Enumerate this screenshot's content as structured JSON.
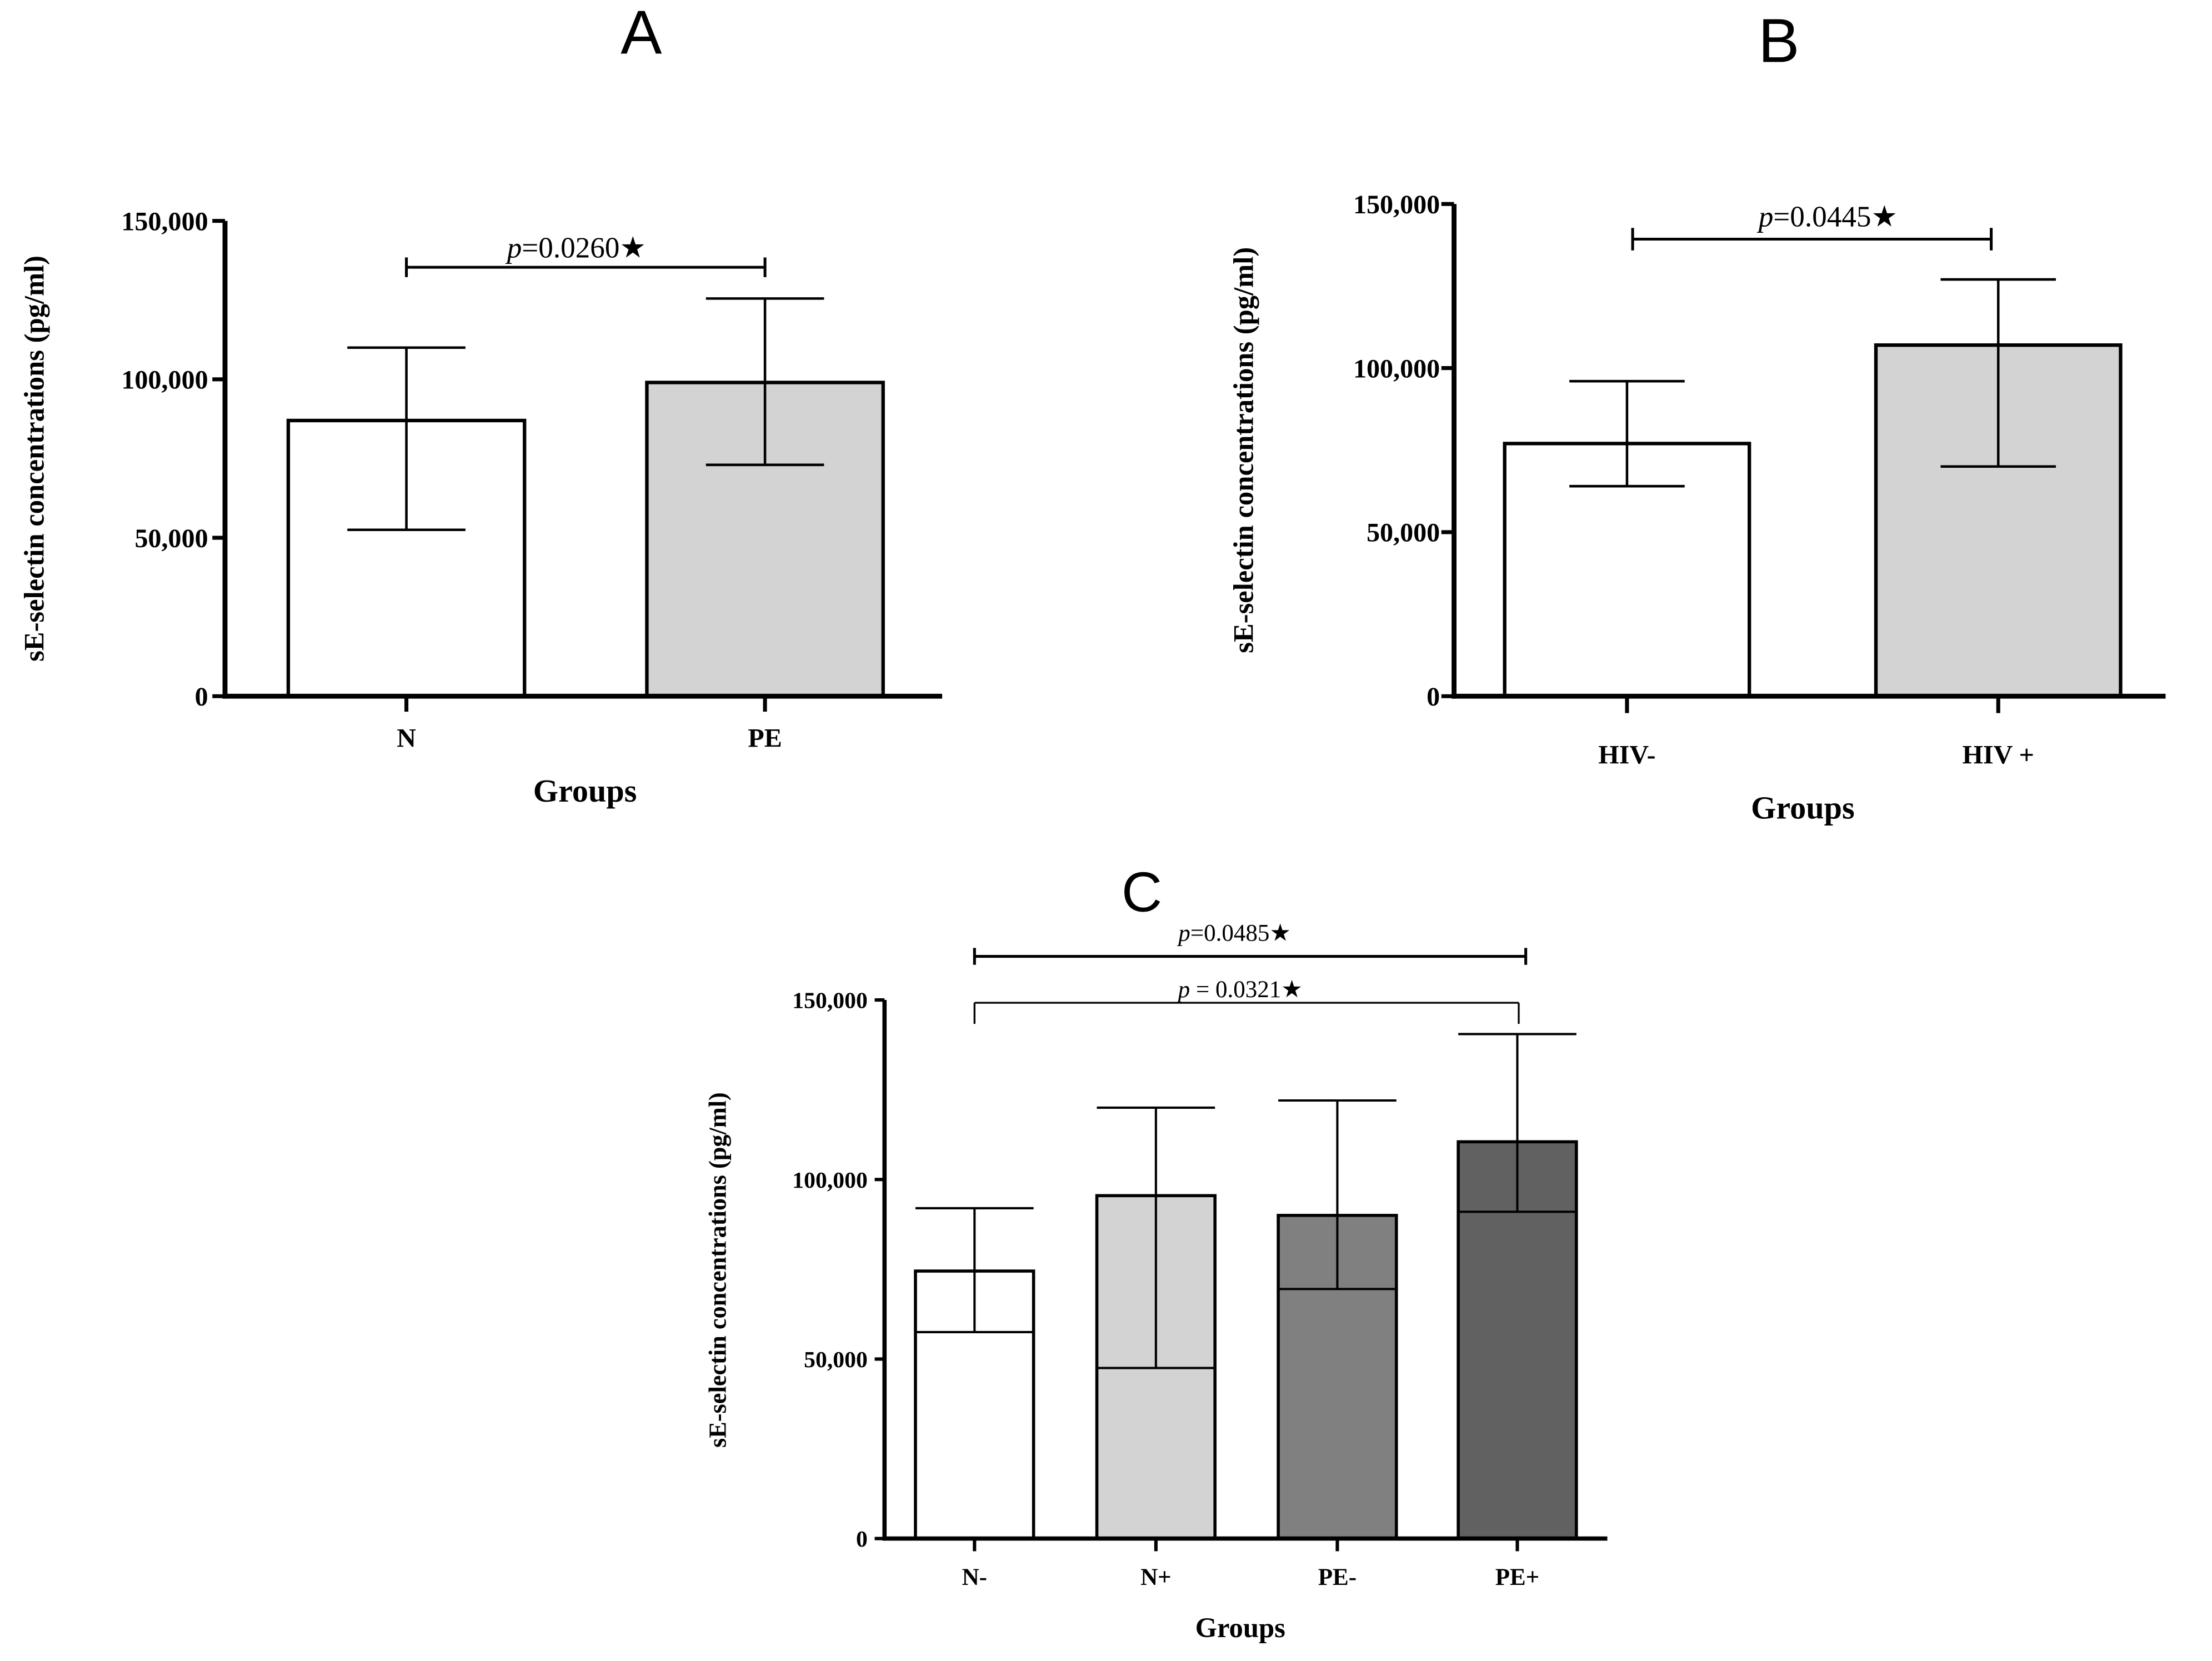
{
  "chart_data": [
    {
      "panel_label": "A",
      "type": "bar",
      "categories": [
        "N",
        "PE"
      ],
      "values": [
        87000,
        99000
      ],
      "error_low": [
        52500,
        73000
      ],
      "error_high": [
        110000,
        125500
      ],
      "bar_colors": [
        "#ffffff",
        "#d3d3d3"
      ],
      "xlabel": "Groups",
      "ylabel": "sE-selectin concentrations (pg/ml)",
      "ylim": [
        0,
        150000
      ],
      "yticks": [
        0,
        50000,
        100000,
        150000
      ],
      "ytick_labels": [
        "0",
        "50,000",
        "100,000",
        "150,000"
      ],
      "annotations": [
        {
          "from": 0,
          "to": 1,
          "p_symbol": "p",
          "text": "=0.0260★"
        }
      ]
    },
    {
      "panel_label": "B",
      "type": "bar",
      "categories": [
        "HIV-",
        "HIV +"
      ],
      "values": [
        77000,
        107000
      ],
      "error_low": [
        64000,
        70000
      ],
      "error_high": [
        96000,
        127000
      ],
      "bar_colors": [
        "#ffffff",
        "#d3d3d3"
      ],
      "xlabel": "Groups",
      "ylabel": "sE-selectin concentrations (pg/ml)",
      "ylim": [
        0,
        150000
      ],
      "yticks": [
        0,
        50000,
        100000,
        150000
      ],
      "ytick_labels": [
        "0",
        "50,000",
        "100,000",
        "150,000"
      ],
      "annotations": [
        {
          "from": 0,
          "to": 1,
          "p_symbol": "p",
          "text": "=0.0445★"
        }
      ]
    },
    {
      "panel_label": "C",
      "type": "bar",
      "categories": [
        "N-",
        "N+",
        "PE-",
        "PE+"
      ],
      "values": [
        74500,
        95500,
        90000,
        110500
      ],
      "error_low": [
        57500,
        47500,
        69500,
        91000
      ],
      "error_high": [
        92000,
        120000,
        122000,
        140500
      ],
      "bar_colors": [
        "#ffffff",
        "#d3d3d3",
        "#808080",
        "#616161"
      ],
      "xlabel": "Groups",
      "ylabel": "sE-selectin concentrations (pg/ml)",
      "ylim": [
        0,
        150000
      ],
      "yticks": [
        0,
        50000,
        100000,
        150000
      ],
      "ytick_labels": [
        "0",
        "50,000",
        "100,000",
        "150,000"
      ],
      "annotations": [
        {
          "from": 0,
          "to": 3,
          "p_symbol": "p",
          "text": "=0.0485★"
        },
        {
          "from": 0,
          "to": 3,
          "p_symbol": "p",
          "text": " = 0.0321★"
        }
      ]
    }
  ]
}
